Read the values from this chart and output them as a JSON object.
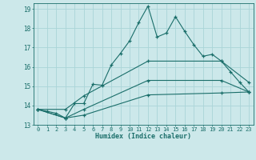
{
  "title": "",
  "xlabel": "Humidex (Indice chaleur)",
  "bg_color": "#cce8ea",
  "grid_color": "#aad4d8",
  "line_color": "#1a6e6a",
  "xlim": [
    -0.5,
    23.5
  ],
  "ylim": [
    13,
    19.3
  ],
  "xticks": [
    0,
    1,
    2,
    3,
    4,
    5,
    6,
    7,
    8,
    9,
    10,
    11,
    12,
    13,
    14,
    15,
    16,
    17,
    18,
    19,
    20,
    21,
    22,
    23
  ],
  "yticks": [
    13,
    14,
    15,
    16,
    17,
    18,
    19
  ],
  "line1_x": [
    0,
    1,
    2,
    3,
    4,
    5,
    6,
    7,
    8,
    9,
    10,
    11,
    12,
    13,
    14,
    15,
    16,
    17,
    18,
    19,
    20,
    21,
    22,
    23
  ],
  "line1_y": [
    13.8,
    13.7,
    13.6,
    13.35,
    14.1,
    14.1,
    15.1,
    15.05,
    16.1,
    16.7,
    17.35,
    18.3,
    19.15,
    17.55,
    17.75,
    18.6,
    17.85,
    17.15,
    16.55,
    16.65,
    16.3,
    15.75,
    15.2,
    14.7
  ],
  "line2_x": [
    0,
    3,
    5,
    12,
    20,
    23
  ],
  "line2_y": [
    13.8,
    13.8,
    14.5,
    16.3,
    16.3,
    15.2
  ],
  "line3_x": [
    0,
    3,
    5,
    12,
    20,
    23
  ],
  "line3_y": [
    13.8,
    13.35,
    13.8,
    15.3,
    15.3,
    14.7
  ],
  "line4_x": [
    0,
    3,
    5,
    12,
    20,
    23
  ],
  "line4_y": [
    13.8,
    13.35,
    13.5,
    14.55,
    14.65,
    14.7
  ]
}
